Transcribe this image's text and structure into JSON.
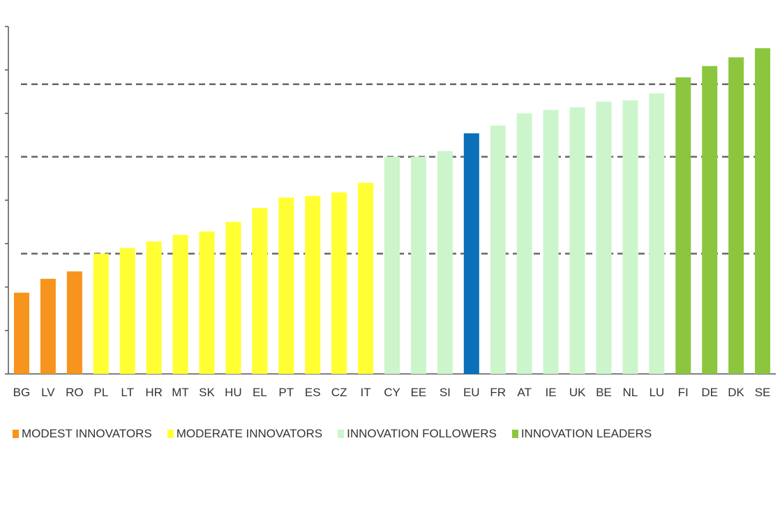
{
  "chart_data": {
    "type": "bar",
    "title": "",
    "xlabel": "",
    "ylabel": "",
    "ylim": [
      0,
      0.8
    ],
    "grid": false,
    "legend_placement": "bottom",
    "reference_lines": [
      0.277,
      0.5,
      0.667
    ],
    "categories": [
      "BG",
      "LV",
      "RO",
      "PL",
      "LT",
      "HR",
      "MT",
      "SK",
      "HU",
      "EL",
      "PT",
      "ES",
      "CZ",
      "IT",
      "CY",
      "EE",
      "SI",
      "EU",
      "FR",
      "AT",
      "IE",
      "UK",
      "BE",
      "NL",
      "LU",
      "FI",
      "DE",
      "DK",
      "SE"
    ],
    "values": [
      0.187,
      0.219,
      0.236,
      0.277,
      0.29,
      0.305,
      0.32,
      0.328,
      0.35,
      0.382,
      0.406,
      0.41,
      0.418,
      0.44,
      0.5,
      0.5,
      0.513,
      0.554,
      0.572,
      0.6,
      0.608,
      0.614,
      0.627,
      0.63,
      0.646,
      0.683,
      0.709,
      0.729,
      0.75
    ],
    "groups": [
      "modest",
      "modest",
      "modest",
      "moderate",
      "moderate",
      "moderate",
      "moderate",
      "moderate",
      "moderate",
      "moderate",
      "moderate",
      "moderate",
      "moderate",
      "moderate",
      "followers",
      "followers",
      "followers",
      "eu",
      "followers",
      "followers",
      "followers",
      "followers",
      "followers",
      "followers",
      "followers",
      "leaders",
      "leaders",
      "leaders",
      "leaders"
    ],
    "colors": {
      "modest": "#f7941d",
      "moderate": "#ffff33",
      "followers": "#ccf5cc",
      "eu": "#0b6fba",
      "leaders": "#8cc63f"
    },
    "legend": [
      {
        "label": "MODEST INNOVATORS",
        "group": "modest"
      },
      {
        "label": "MODERATE INNOVATORS",
        "group": "moderate"
      },
      {
        "label": "INNOVATION FOLLOWERS",
        "group": "followers"
      },
      {
        "label": "INNOVATION LEADERS",
        "group": "leaders"
      }
    ]
  }
}
